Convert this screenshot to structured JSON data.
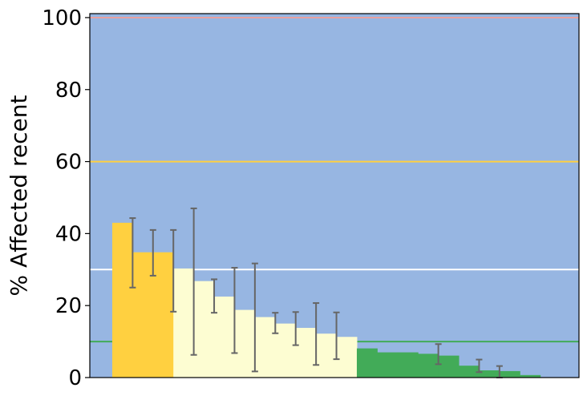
{
  "chart_data": {
    "type": "bar",
    "ylabel": "% Affected recent",
    "ylim": [
      0,
      100
    ],
    "xlim": [
      0,
      24
    ],
    "yticks": [
      0,
      20,
      40,
      60,
      80,
      100
    ],
    "grid": false,
    "colors": {
      "background": "#97b6e2",
      "high": "#ffd040",
      "medium": "#fdfdd2",
      "low": "#42ab58",
      "errorbar": "#666666",
      "line_100": "#e8a0a0",
      "line_60": "#ffd040",
      "line_30": "#ffffff",
      "line_10": "#42ab58"
    },
    "reference_lines": [
      {
        "y": 100,
        "color_key": "line_100"
      },
      {
        "y": 60,
        "color_key": "line_60"
      },
      {
        "y": 30,
        "color_key": "line_30"
      },
      {
        "y": 10,
        "color_key": "line_10"
      }
    ],
    "bars": [
      {
        "x0": 1.1,
        "x1": 2.1,
        "y": 43,
        "err": [
          25,
          44.3
        ],
        "cat": "high"
      },
      {
        "x0": 2.1,
        "x1": 3.1,
        "y": 34.8,
        "err": [
          28.3,
          41
        ],
        "cat": "high"
      },
      {
        "x0": 3.1,
        "x1": 4.1,
        "y": 34.8,
        "err": [
          18.3,
          41
        ],
        "cat": "high"
      },
      {
        "x0": 4.1,
        "x1": 5.1,
        "y": 30.3,
        "err": [
          6.3,
          47
        ],
        "cat": "medium"
      },
      {
        "x0": 5.1,
        "x1": 6.1,
        "y": 26.8,
        "err": [
          18,
          27.3
        ],
        "cat": "medium"
      },
      {
        "x0": 6.1,
        "x1": 7.1,
        "y": 22.5,
        "err": [
          6.8,
          30.5
        ],
        "cat": "medium"
      },
      {
        "x0": 7.1,
        "x1": 8.1,
        "y": 18.8,
        "err": [
          1.7,
          31.7
        ],
        "cat": "medium"
      },
      {
        "x0": 8.1,
        "x1": 9.1,
        "y": 16.8,
        "err": [
          12.3,
          18
        ],
        "cat": "medium"
      },
      {
        "x0": 9.1,
        "x1": 10.1,
        "y": 15,
        "err": [
          9,
          18.2
        ],
        "cat": "medium"
      },
      {
        "x0": 10.1,
        "x1": 11.1,
        "y": 13.8,
        "err": [
          3.5,
          20.7
        ],
        "cat": "medium"
      },
      {
        "x0": 11.1,
        "x1": 12.1,
        "y": 12.2,
        "err": [
          5.1,
          18.1
        ],
        "cat": "medium"
      },
      {
        "x0": 12.1,
        "x1": 13.1,
        "y": 11.3,
        "err": null,
        "cat": "medium"
      },
      {
        "x0": 13.1,
        "x1": 14.1,
        "y": 8.1,
        "err": null,
        "cat": "low"
      },
      {
        "x0": 14.1,
        "x1": 15.1,
        "y": 7,
        "err": null,
        "cat": "low"
      },
      {
        "x0": 15.1,
        "x1": 16.1,
        "y": 7,
        "err": null,
        "cat": "low"
      },
      {
        "x0": 16.1,
        "x1": 17.1,
        "y": 6.6,
        "err": [
          3.7,
          9.3
        ],
        "cat": "low"
      },
      {
        "x0": 17.1,
        "x1": 18.1,
        "y": 6.1,
        "err": null,
        "cat": "low"
      },
      {
        "x0": 18.1,
        "x1": 19.1,
        "y": 3.3,
        "err": [
          1.5,
          5
        ],
        "cat": "low"
      },
      {
        "x0": 19.1,
        "x1": 20.1,
        "y": 2,
        "err": [
          0,
          3.2
        ],
        "cat": "low"
      },
      {
        "x0": 20.1,
        "x1": 21.1,
        "y": 1.8,
        "err": null,
        "cat": "low"
      },
      {
        "x0": 21.1,
        "x1": 22.1,
        "y": 0.7,
        "err": null,
        "cat": "low"
      }
    ]
  }
}
